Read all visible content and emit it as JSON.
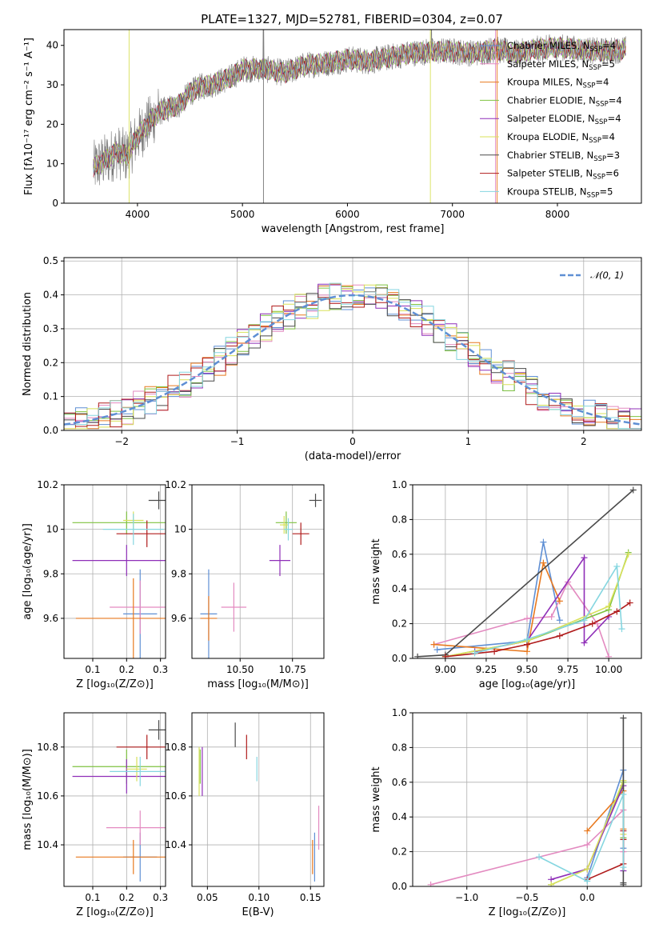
{
  "figure_title": "PLATE=1327, MJD=52781, FIBERID=0304, z=0.07",
  "series_styles": [
    {
      "name": "Chabrier MILES",
      "nssp": "4",
      "color": "#5f8fd4"
    },
    {
      "name": "Salpeter MILES",
      "nssp": "5",
      "color": "#e38ac0"
    },
    {
      "name": "Kroupa MILES",
      "nssp": "4",
      "color": "#e8791f"
    },
    {
      "name": "Chabrier ELODIE",
      "nssp": "4",
      "color": "#7fc241"
    },
    {
      "name": "Salpeter ELODIE",
      "nssp": "4",
      "color": "#8f2fb8"
    },
    {
      "name": "Kroupa ELODIE",
      "nssp": "4",
      "color": "#d8e05a"
    },
    {
      "name": "Chabrier STELIB",
      "nssp": "3",
      "color": "#4a4a4a"
    },
    {
      "name": "Salpeter STELIB",
      "nssp": "6",
      "color": "#b01c1c"
    },
    {
      "name": "Kroupa STELIB",
      "nssp": "5",
      "color": "#85d6e0"
    }
  ],
  "chart_data": [
    {
      "id": "spectrum",
      "type": "line",
      "title": "PLATE=1327, MJD=52781, FIBERID=0304, z=0.07",
      "xlabel": "wavelength [Angstrom, rest frame]",
      "ylabel": "Flux [fλ10⁻¹⁷ erg cm⁻² s⁻¹ A⁻¹]",
      "xlim": [
        3300,
        8800
      ],
      "ylim": [
        0,
        44
      ],
      "xticks": [
        4000,
        5000,
        6000,
        7000,
        8000
      ],
      "yticks": [
        0,
        10,
        20,
        30,
        40
      ],
      "grid": false,
      "legend": "top-right",
      "continuum_x": [
        3580,
        3700,
        3800,
        3900,
        4000,
        4100,
        4200,
        4300,
        4400,
        4500,
        4600,
        4700,
        4800,
        4900,
        5000,
        5200,
        5400,
        5600,
        5800,
        6000,
        6200,
        6400,
        6600,
        6800,
        7000,
        7200,
        7400,
        7600,
        7800,
        8000,
        8200,
        8400,
        8650
      ],
      "continuum_y": [
        9,
        11,
        13,
        12,
        17,
        20,
        23,
        24,
        25,
        28,
        29.5,
        30,
        31,
        32,
        34,
        34,
        33,
        35,
        35.5,
        36.5,
        36,
        37,
        38,
        38.5,
        38.5,
        38,
        39,
        38,
        39,
        39.5,
        39,
        38.5,
        39
      ]
    },
    {
      "id": "residuals",
      "type": "bar",
      "xlabel": "(data-model)/error",
      "ylabel": "Normed distribution",
      "xlim": [
        -2.5,
        2.5
      ],
      "ylim": [
        0,
        0.51
      ],
      "xticks": [
        -2,
        -1,
        0,
        1,
        2
      ],
      "xtick_labels": [
        "−2",
        "−1",
        "0",
        "1",
        "2"
      ],
      "yticks": [
        0.0,
        0.1,
        0.2,
        0.3,
        0.4,
        0.5
      ],
      "ytick_labels": [
        "0.0",
        "0.1",
        "0.2",
        "0.3",
        "0.4",
        "0.5"
      ],
      "grid": true,
      "legend": "top-right",
      "gaussian_label": "𝒩(0, 1)",
      "gaussian_color": "#5f8fd4",
      "bins_x": [
        -2.5,
        -2.4,
        -2.3,
        -2.2,
        -2.1,
        -2.0,
        -1.9,
        -1.8,
        -1.7,
        -1.6,
        -1.5,
        -1.4,
        -1.3,
        -1.2,
        -1.1,
        -1.0,
        -0.9,
        -0.8,
        -0.7,
        -0.6,
        -0.5,
        -0.4,
        -0.3,
        -0.2,
        -0.1,
        0.0,
        0.1,
        0.2,
        0.3,
        0.4,
        0.5,
        0.6,
        0.7,
        0.8,
        0.9,
        1.0,
        1.1,
        1.2,
        1.3,
        1.4,
        1.5,
        1.6,
        1.7,
        1.8,
        1.9,
        2.0,
        2.1,
        2.2,
        2.3,
        2.4
      ]
    },
    {
      "id": "age_vs_Z",
      "type": "scatter",
      "xlabel": "Z [log₁₀(Z/Z⊙)]",
      "ylabel": "age  [log₁₀(age/yr)]",
      "xlim": [
        0.015,
        0.315
      ],
      "ylim": [
        9.42,
        10.2
      ],
      "xticks": [
        0.1,
        0.2,
        0.3
      ],
      "yticks": [
        9.6,
        9.8,
        10.0,
        10.2
      ],
      "grid": true,
      "points": [
        {
          "s": 0,
          "x": 0.24,
          "y": 9.62,
          "xerr": 0.05,
          "yerr": 0.2
        },
        {
          "s": 1,
          "x": 0.24,
          "y": 9.65,
          "xerr": 0.09,
          "yerr": 0.12
        },
        {
          "s": 2,
          "x": 0.22,
          "y": 9.6,
          "xerr": 0.17,
          "yerr": 0.18
        },
        {
          "s": 3,
          "x": 0.2,
          "y": 10.03,
          "xerr": 0.16,
          "yerr": 0.05
        },
        {
          "s": 4,
          "x": 0.2,
          "y": 9.86,
          "xerr": 0.16,
          "yerr": 0.07
        },
        {
          "s": 5,
          "x": 0.22,
          "y": 10.04,
          "xerr": 0.03,
          "yerr": 0.04
        },
        {
          "s": 6,
          "x": 0.295,
          "y": 10.13,
          "xerr": 0.03,
          "yerr": 0.04
        },
        {
          "s": 7,
          "x": 0.26,
          "y": 9.98,
          "xerr": 0.09,
          "yerr": 0.06
        },
        {
          "s": 8,
          "x": 0.22,
          "y": 10.0,
          "xerr": 0.09,
          "yerr": 0.07
        }
      ]
    },
    {
      "id": "age_vs_mass",
      "type": "scatter",
      "xlabel": "mass [log₁₀(M/M⊙)]",
      "xlim": [
        10.27,
        10.9
      ],
      "ylim": [
        9.42,
        10.2
      ],
      "xticks": [
        10.25,
        10.5,
        10.75
      ],
      "xtick_labels": [
        "10.25",
        "10.50",
        "10.75"
      ],
      "yticks": [
        9.6,
        9.8,
        10.0,
        10.2
      ],
      "grid": true,
      "points": [
        {
          "s": 0,
          "x": 10.35,
          "y": 9.62,
          "xerr": 0.04,
          "yerr": 0.2
        },
        {
          "s": 1,
          "x": 10.47,
          "y": 9.65,
          "xerr": 0.06,
          "yerr": 0.11
        },
        {
          "s": 2,
          "x": 10.35,
          "y": 9.6,
          "xerr": 0.04,
          "yerr": 0.1
        },
        {
          "s": 3,
          "x": 10.72,
          "y": 10.03,
          "xerr": 0.05,
          "yerr": 0.05
        },
        {
          "s": 4,
          "x": 10.69,
          "y": 9.86,
          "xerr": 0.05,
          "yerr": 0.07
        },
        {
          "s": 5,
          "x": 10.71,
          "y": 10.02,
          "xerr": 0.02,
          "yerr": 0.04
        },
        {
          "s": 6,
          "x": 10.86,
          "y": 10.13,
          "xerr": 0.03,
          "yerr": 0.03
        },
        {
          "s": 7,
          "x": 10.79,
          "y": 9.98,
          "xerr": 0.04,
          "yerr": 0.05
        },
        {
          "s": 8,
          "x": 10.73,
          "y": 10.0,
          "xerr": 0.02,
          "yerr": 0.05
        }
      ]
    },
    {
      "id": "weight_vs_age",
      "type": "line",
      "xlabel": "age  [log₁₀(age/yr)]",
      "ylabel": "mass weight",
      "xlim": [
        8.8,
        10.2
      ],
      "ylim": [
        0,
        1.0
      ],
      "xticks": [
        9.0,
        9.25,
        9.5,
        9.75,
        10.0
      ],
      "xtick_labels": [
        "9.00",
        "9.25",
        "9.50",
        "9.75",
        "10.00"
      ],
      "yticks": [
        0.0,
        0.2,
        0.4,
        0.6,
        0.8,
        1.0
      ],
      "ytick_labels": [
        "0.0",
        "0.2",
        "0.4",
        "0.6",
        "0.8",
        "1.0"
      ],
      "grid": true,
      "series": [
        {
          "s": 0,
          "x": [
            8.95,
            9.5,
            9.6,
            9.7
          ],
          "y": [
            0.05,
            0.1,
            0.67,
            0.22
          ]
        },
        {
          "s": 1,
          "x": [
            8.93,
            9.5,
            9.65,
            9.75,
            9.93,
            10.0
          ],
          "y": [
            0.08,
            0.23,
            0.24,
            0.44,
            0.2,
            0.01
          ]
        },
        {
          "s": 2,
          "x": [
            8.93,
            9.5,
            9.6,
            9.7
          ],
          "y": [
            0.08,
            0.04,
            0.55,
            0.33
          ]
        },
        {
          "s": 3,
          "x": [
            9.0,
            9.5,
            10.0,
            10.12
          ],
          "y": [
            0.01,
            0.1,
            0.28,
            0.61
          ]
        },
        {
          "s": 4,
          "x": [
            9.18,
            9.5,
            9.85,
            9.85,
            10.0
          ],
          "y": [
            0.04,
            0.1,
            0.58,
            0.09,
            0.24
          ]
        },
        {
          "s": 5,
          "x": [
            9.0,
            9.5,
            10.0,
            10.12
          ],
          "y": [
            0.01,
            0.1,
            0.3,
            0.6
          ]
        },
        {
          "s": 6,
          "x": [
            8.83,
            9.0,
            10.15
          ],
          "y": [
            0.01,
            0.02,
            0.97
          ]
        },
        {
          "s": 7,
          "x": [
            9.0,
            9.3,
            9.5,
            9.7,
            9.9,
            10.05,
            10.13
          ],
          "y": [
            0.01,
            0.04,
            0.08,
            0.13,
            0.2,
            0.27,
            0.32
          ]
        },
        {
          "s": 8,
          "x": [
            9.18,
            9.5,
            9.85,
            10.05,
            10.08
          ],
          "y": [
            0.03,
            0.11,
            0.22,
            0.53,
            0.17
          ]
        }
      ]
    },
    {
      "id": "mass_vs_Z",
      "type": "scatter",
      "xlabel": "Z [log₁₀(Z/Z⊙)]",
      "ylabel": "mass [log₁₀(M/M⊙)]",
      "xlim": [
        0.015,
        0.315
      ],
      "ylim": [
        10.23,
        10.94
      ],
      "xticks": [
        0.1,
        0.2,
        0.3
      ],
      "yticks": [
        10.4,
        10.6,
        10.8
      ],
      "grid": true,
      "points": [
        {
          "s": 0,
          "x": 0.24,
          "y": 10.35,
          "xerr": 0.05,
          "yerr": 0.1
        },
        {
          "s": 1,
          "x": 0.24,
          "y": 10.47,
          "xerr": 0.1,
          "yerr": 0.07
        },
        {
          "s": 2,
          "x": 0.22,
          "y": 10.35,
          "xerr": 0.17,
          "yerr": 0.07
        },
        {
          "s": 3,
          "x": 0.2,
          "y": 10.72,
          "xerr": 0.16,
          "yerr": 0.07
        },
        {
          "s": 4,
          "x": 0.2,
          "y": 10.68,
          "xerr": 0.16,
          "yerr": 0.07
        },
        {
          "s": 5,
          "x": 0.23,
          "y": 10.71,
          "xerr": 0.03,
          "yerr": 0.05
        },
        {
          "s": 6,
          "x": 0.295,
          "y": 10.87,
          "xerr": 0.03,
          "yerr": 0.04
        },
        {
          "s": 7,
          "x": 0.26,
          "y": 10.8,
          "xerr": 0.09,
          "yerr": 0.05
        },
        {
          "s": 8,
          "x": 0.24,
          "y": 10.7,
          "xerr": 0.09,
          "yerr": 0.06
        }
      ]
    },
    {
      "id": "mass_vs_ebv",
      "type": "scatter",
      "xlabel": "E(B-V)",
      "xlim": [
        0.035,
        0.163
      ],
      "ylim": [
        10.23,
        10.94
      ],
      "xticks": [
        0.05,
        0.1,
        0.15
      ],
      "xtick_labels": [
        "0.05",
        "0.10",
        "0.15"
      ],
      "yticks": [
        10.4,
        10.6,
        10.8
      ],
      "grid": true,
      "points": [
        {
          "s": 0,
          "x": 0.154,
          "y": 10.35,
          "xerr": 0,
          "yerr": 0.1
        },
        {
          "s": 1,
          "x": 0.158,
          "y": 10.47,
          "xerr": 0,
          "yerr": 0.09
        },
        {
          "s": 2,
          "x": 0.152,
          "y": 10.35,
          "xerr": 0,
          "yerr": 0.07
        },
        {
          "s": 3,
          "x": 0.043,
          "y": 10.72,
          "xerr": 0,
          "yerr": 0.07
        },
        {
          "s": 4,
          "x": 0.045,
          "y": 10.7,
          "xerr": 0,
          "yerr": 0.1
        },
        {
          "s": 5,
          "x": 0.042,
          "y": 10.7,
          "xerr": 0,
          "yerr": 0.1
        },
        {
          "s": 6,
          "x": 0.077,
          "y": 10.85,
          "xerr": 0,
          "yerr": 0.05
        },
        {
          "s": 7,
          "x": 0.088,
          "y": 10.8,
          "xerr": 0,
          "yerr": 0.05
        },
        {
          "s": 8,
          "x": 0.098,
          "y": 10.71,
          "xerr": 0,
          "yerr": 0.05
        }
      ]
    },
    {
      "id": "weight_vs_Z",
      "type": "line",
      "xlabel": "Z [log₁₀(Z/Z⊙)]",
      "ylabel": "mass weight",
      "xlim": [
        -1.45,
        0.45
      ],
      "ylim": [
        0,
        1.0
      ],
      "xticks": [
        -1.0,
        -0.5,
        0.0
      ],
      "xtick_labels": [
        "−1.0",
        "−0.5",
        "0.0"
      ],
      "yticks": [
        0.0,
        0.2,
        0.4,
        0.6,
        0.8,
        1.0
      ],
      "ytick_labels": [
        "0.0",
        "0.2",
        "0.4",
        "0.6",
        "0.8",
        "1.0"
      ],
      "grid": true,
      "series": [
        {
          "s": 0,
          "x": [
            0.0,
            0.3,
            0.3
          ],
          "y": [
            0.05,
            0.67,
            0.22
          ]
        },
        {
          "s": 1,
          "x": [
            -1.3,
            0.0,
            0.3,
            0.3
          ],
          "y": [
            0.01,
            0.24,
            0.44,
            0.2
          ]
        },
        {
          "s": 2,
          "x": [
            0.0,
            0.3,
            0.3
          ],
          "y": [
            0.32,
            0.55,
            0.33
          ]
        },
        {
          "s": 3,
          "x": [
            -0.3,
            0.0,
            0.3,
            0.3
          ],
          "y": [
            0.01,
            0.1,
            0.6,
            0.28
          ]
        },
        {
          "s": 4,
          "x": [
            -0.3,
            0.0,
            0.3,
            0.3
          ],
          "y": [
            0.04,
            0.1,
            0.58,
            0.09
          ]
        },
        {
          "s": 5,
          "x": [
            -0.3,
            0.0,
            0.3,
            0.3
          ],
          "y": [
            0.01,
            0.1,
            0.61,
            0.3
          ]
        },
        {
          "s": 6,
          "x": [
            0.3,
            0.3,
            0.3
          ],
          "y": [
            0.01,
            0.02,
            0.97
          ]
        },
        {
          "s": 7,
          "x": [
            0.0,
            0.3,
            0.3,
            0.3
          ],
          "y": [
            0.04,
            0.13,
            0.27,
            0.32
          ]
        },
        {
          "s": 8,
          "x": [
            -0.4,
            0.0,
            0.3,
            0.3
          ],
          "y": [
            0.17,
            0.03,
            0.53,
            0.11
          ]
        }
      ]
    }
  ]
}
